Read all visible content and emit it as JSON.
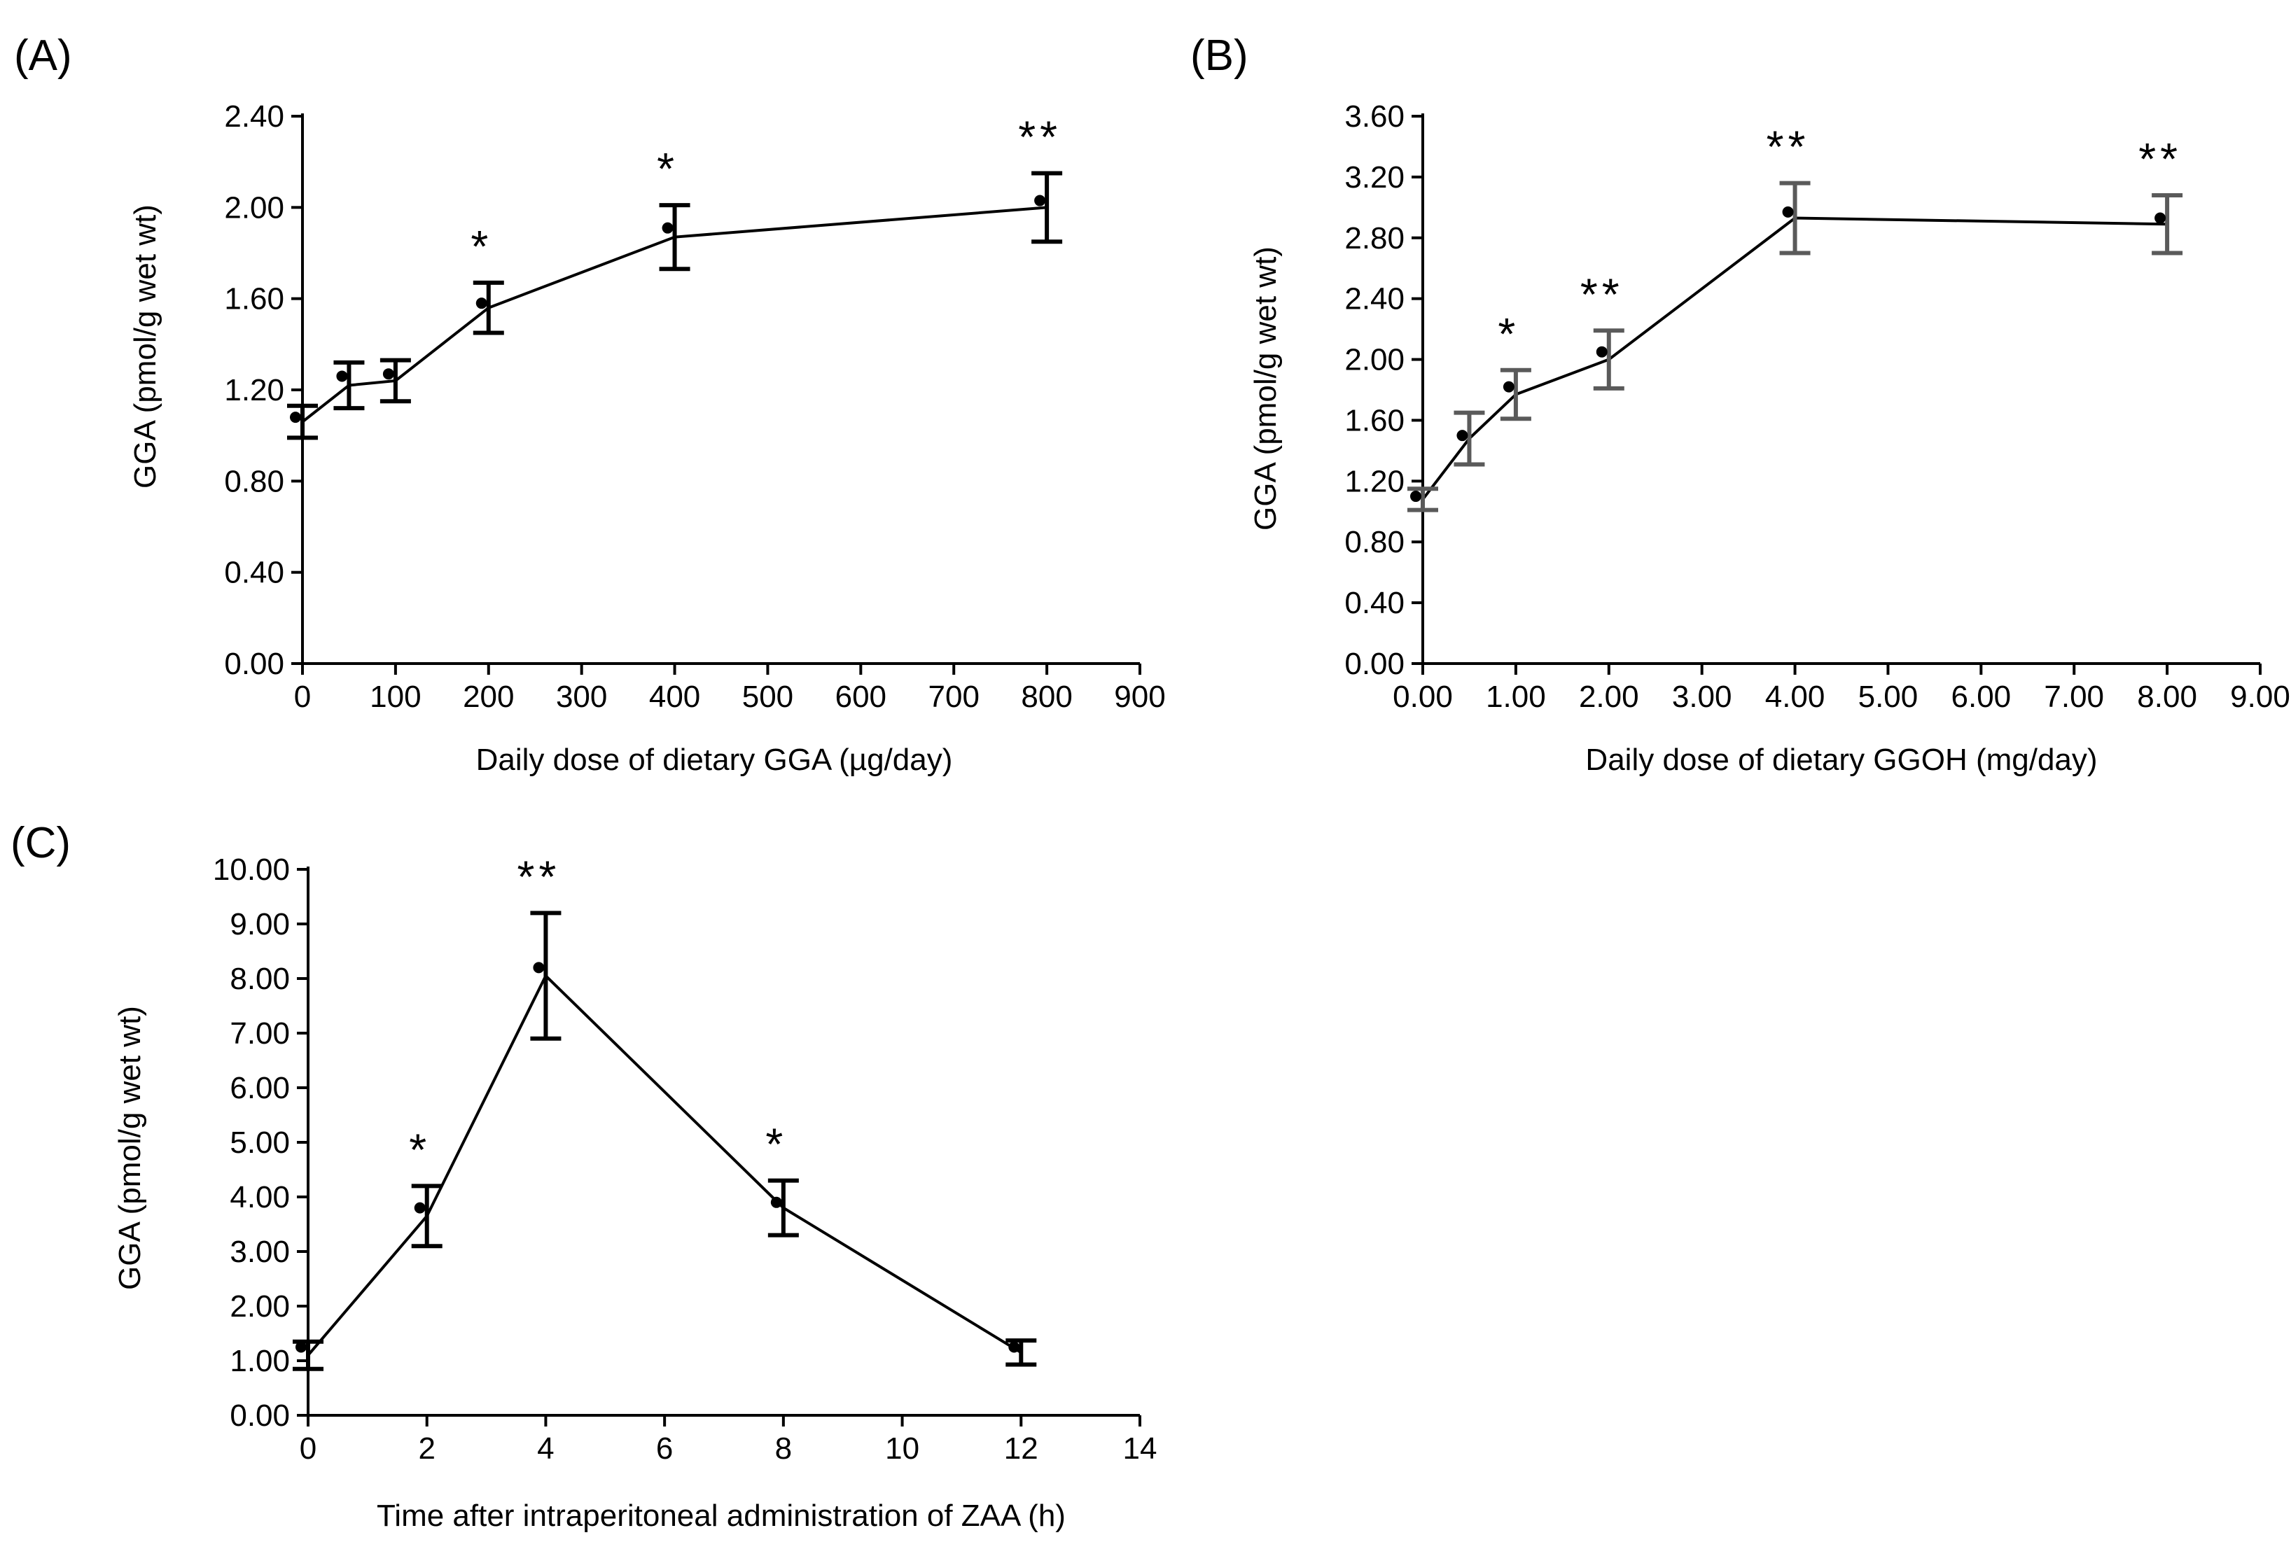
{
  "chart_data": [
    {
      "panel": "(A)",
      "type": "line",
      "xlabel": "Daily dose of dietary GGA (µg/day)",
      "ylabel": "GGA (pmol/g wet wt)",
      "xlim": [
        0,
        900
      ],
      "ylim": [
        0,
        2.4
      ],
      "xticks": [
        "0",
        "100",
        "200",
        "300",
        "400",
        "500",
        "600",
        "700",
        "800",
        "900"
      ],
      "yticks": [
        "0.00",
        "0.40",
        "0.80",
        "1.20",
        "1.60",
        "2.00",
        "2.40"
      ],
      "grid": false,
      "error_bar_color": "#000000",
      "series": [
        {
          "x": [
            0,
            50,
            100,
            200,
            400,
            800
          ],
          "points": [
            1.08,
            1.26,
            1.27,
            1.58,
            1.91,
            2.03
          ],
          "line": [
            1.06,
            1.22,
            1.24,
            1.56,
            1.87,
            2.0
          ],
          "error": [
            0.07,
            0.1,
            0.09,
            0.11,
            0.14,
            0.15
          ],
          "significance": [
            "",
            "",
            "",
            "*",
            "*",
            "**"
          ]
        }
      ]
    },
    {
      "panel": "(B)",
      "type": "line",
      "xlabel": "Daily dose of dietary GGOH (mg/day)",
      "ylabel": "GGA (pmol/g wet wt)",
      "xlim": [
        0,
        9
      ],
      "ylim": [
        0,
        3.6
      ],
      "xticks": [
        "0.00",
        "1.00",
        "2.00",
        "3.00",
        "4.00",
        "5.00",
        "6.00",
        "7.00",
        "8.00",
        "9.00"
      ],
      "yticks": [
        "0.00",
        "0.40",
        "0.80",
        "1.20",
        "1.60",
        "2.00",
        "2.40",
        "2.80",
        "3.20",
        "3.60"
      ],
      "grid": false,
      "error_bar_color": "#5a5a5a",
      "series": [
        {
          "x": [
            0,
            0.5,
            1,
            2,
            4,
            8
          ],
          "points": [
            1.1,
            1.5,
            1.82,
            2.05,
            2.97,
            2.93
          ],
          "line": [
            1.08,
            1.48,
            1.77,
            2.0,
            2.93,
            2.89
          ],
          "error": [
            0.07,
            0.17,
            0.16,
            0.19,
            0.23,
            0.19
          ],
          "significance": [
            "",
            "",
            "*",
            "**",
            "**",
            "**"
          ]
        }
      ]
    },
    {
      "panel": "(C)",
      "type": "line",
      "xlabel": "Time after intraperitoneal administration of ZAA (h)",
      "ylabel": "GGA (pmol/g wet wt)",
      "xlim": [
        0,
        14
      ],
      "ylim": [
        0,
        10
      ],
      "xticks": [
        "0",
        "2",
        "4",
        "6",
        "8",
        "10",
        "12",
        "14"
      ],
      "yticks": [
        "0.00",
        "1.00",
        "2.00",
        "3.00",
        "4.00",
        "5.00",
        "6.00",
        "7.00",
        "8.00",
        "9.00",
        "10.00"
      ],
      "grid": false,
      "error_bar_color": "#000000",
      "series": [
        {
          "x": [
            0,
            2,
            4,
            8,
            12
          ],
          "points": [
            1.25,
            3.8,
            8.2,
            3.9,
            1.25
          ],
          "line": [
            1.1,
            3.65,
            8.05,
            3.8,
            1.15
          ],
          "error": [
            0.25,
            0.55,
            1.15,
            0.5,
            0.22
          ],
          "significance": [
            "",
            "*",
            "**",
            "*",
            ""
          ]
        }
      ]
    }
  ]
}
